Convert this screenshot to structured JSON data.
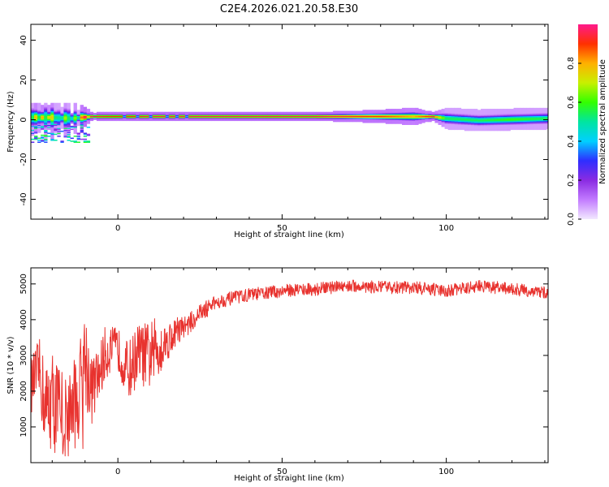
{
  "chart_data": [
    {
      "type": "heatmap",
      "title": "C2E4.2026.021.20.58.E30",
      "xlabel": "Height of straight line (km)",
      "ylabel": "Frequency (Hz)",
      "xlim": [
        -26.5,
        131
      ],
      "ylim": [
        -50,
        48
      ],
      "xticks": [
        0,
        50,
        100
      ],
      "yticks": [
        -40,
        -20,
        0,
        20,
        40
      ],
      "xtick_labels": [
        "0",
        "50",
        "100"
      ],
      "ytick_labels": [
        "-40",
        "-20",
        "0",
        "20",
        "40"
      ],
      "colorbar": {
        "label": "Normalized spectral amplitude",
        "range": [
          0,
          1
        ],
        "ticks": [
          0.0,
          0.2,
          0.4,
          0.6,
          0.8
        ],
        "tick_labels": [
          "0.0",
          "0.2",
          "0.4",
          "0.6",
          "0.8"
        ],
        "colors": [
          "#f2e8ff",
          "#c27bff",
          "#8a2be2",
          "#2e2eff",
          "#00d0ff",
          "#00e5a0",
          "#33ff00",
          "#c8f000",
          "#ffb000",
          "#ff3000",
          "#ff1a8c"
        ]
      },
      "ridge": {
        "x": [
          -26,
          -20,
          -14,
          -8,
          0,
          10,
          20,
          40,
          60,
          80,
          90,
          96,
          100,
          110,
          120,
          131
        ],
        "center_hz": [
          1,
          1,
          0.5,
          1.5,
          1.5,
          1.5,
          1.5,
          1.5,
          1.5,
          1.5,
          1.5,
          1.5,
          0.5,
          -0.5,
          0,
          0.5
        ],
        "peak_amplitude": [
          0.75,
          0.6,
          0.55,
          0.95,
          0.9,
          0.95,
          0.95,
          0.95,
          0.95,
          0.9,
          0.8,
          0.95,
          0.55,
          0.55,
          0.6,
          0.55
        ],
        "half_width_hz": [
          3,
          4,
          3,
          1,
          1,
          1,
          1,
          1,
          1,
          1.5,
          2,
          1,
          2.5,
          2.5,
          2.5,
          2.5
        ]
      }
    },
    {
      "type": "line",
      "xlabel": "Height of straight line (km)",
      "ylabel": "SNR (10 * v/v)",
      "xlim": [
        -26.5,
        131
      ],
      "ylim": [
        0,
        5450
      ],
      "xticks": [
        0,
        50,
        100
      ],
      "yticks": [
        1000,
        2000,
        3000,
        4000,
        5000
      ],
      "xtick_labels": [
        "0",
        "50",
        "100"
      ],
      "ytick_labels": [
        "1000",
        "2000",
        "3000",
        "4000",
        "5000"
      ],
      "series": [
        {
          "name": "SNR",
          "color": "#e8322e",
          "envelope": {
            "x": [
              -26,
              -24,
              -22,
              -20,
              -18,
              -16,
              -14,
              -12,
              -10,
              -8,
              -6,
              -4,
              -2,
              0,
              2,
              4,
              6,
              8,
              10,
              12,
              14,
              16,
              18,
              20,
              22,
              24,
              26,
              28,
              30,
              35,
              40,
              45,
              50,
              55,
              60,
              70,
              80,
              90,
              100,
              110,
              120,
              131
            ],
            "mean": [
              2200,
              2600,
              1500,
              1800,
              1400,
              1200,
              1600,
              1800,
              3000,
              2000,
              2400,
              3000,
              3200,
              3200,
              2700,
              2600,
              3100,
              3000,
              3000,
              3200,
              3300,
              3500,
              3700,
              3800,
              3900,
              4100,
              4250,
              4350,
              4500,
              4600,
              4700,
              4750,
              4800,
              4850,
              4850,
              4950,
              4900,
              4900,
              4800,
              4950,
              4850,
              4750
            ],
            "amp": [
              800,
              900,
              1300,
              1400,
              1500,
              1300,
              1200,
              1400,
              1500,
              1000,
              800,
              800,
              600,
              600,
              700,
              900,
              800,
              900,
              1000,
              900,
              600,
              500,
              400,
              300,
              300,
              260,
              250,
              230,
              200,
              190,
              180,
              180,
              180,
              180,
              180,
              170,
              180,
              180,
              180,
              170,
              180,
              170
            ]
          }
        }
      ]
    }
  ]
}
